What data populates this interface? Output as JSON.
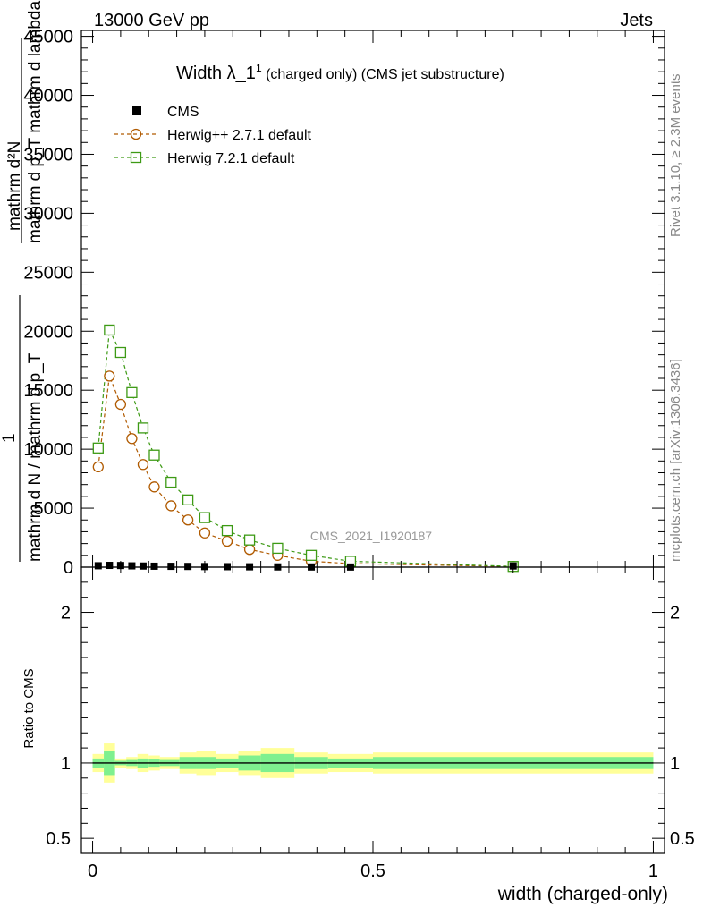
{
  "header": {
    "left": "13000 GeV pp",
    "right": "Jets"
  },
  "side_labels": {
    "rivet": "Rivet 3.1.10, ≥ 2.3M events",
    "mcplots": "mcplots.cern.ch [arXiv:1306.3436]"
  },
  "colors": {
    "cms": "#000000",
    "herwigpp": "#b05a00",
    "herwig7": "#3d9a15",
    "band_yellow": "#ffff99",
    "band_green": "#7ff08f"
  },
  "chart_data": [
    {
      "type": "scatter",
      "title_main": "Width λ_1",
      "title_sup": "1",
      "title_rest": " (charged only) (CMS jet substructure)",
      "watermark": "CMS_2021_I1920187",
      "ylabel": {
        "numerator_top": "mathrm d²N",
        "numerator_bottom": "mathrm d p_T mathrm d lambda",
        "prefix": "1",
        "denominator": "mathrm d N / mathrm d p_T"
      },
      "xlim": [
        -0.02,
        1.02
      ],
      "ylim": [
        0,
        45500
      ],
      "yticks": [
        {
          "value": 0,
          "label": "0"
        },
        {
          "value": 5000,
          "label": "5000"
        },
        {
          "value": 10000,
          "label": "10000"
        },
        {
          "value": 15000,
          "label": "15000"
        },
        {
          "value": 20000,
          "label": "20000"
        },
        {
          "value": 25000,
          "label": "25000"
        },
        {
          "value": 30000,
          "label": "30000"
        },
        {
          "value": 35000,
          "label": "35000"
        },
        {
          "value": 40000,
          "label": "40000"
        },
        {
          "value": 45000,
          "label": "45000"
        }
      ],
      "legend": [
        "CMS",
        "Herwig++ 2.7.1 default",
        "Herwig 7.2.1 default"
      ],
      "legend_position": "top-left",
      "series": [
        {
          "name": "CMS",
          "x": [
            0.01,
            0.03,
            0.05,
            0.07,
            0.09,
            0.11,
            0.14,
            0.17,
            0.2,
            0.24,
            0.28,
            0.33,
            0.39,
            0.46,
            0.75
          ],
          "y": [
            120,
            150,
            140,
            110,
            95,
            80,
            70,
            60,
            50,
            40,
            30,
            20,
            15,
            10,
            100
          ]
        },
        {
          "name": "Herwig++ 2.7.1 default",
          "x": [
            0.01,
            0.03,
            0.05,
            0.07,
            0.09,
            0.11,
            0.14,
            0.17,
            0.2,
            0.24,
            0.28,
            0.33,
            0.39,
            0.46,
            0.75
          ],
          "y": [
            8500,
            16200,
            13800,
            10900,
            8700,
            6800,
            5200,
            4000,
            2900,
            2200,
            1500,
            1000,
            500,
            300,
            60
          ]
        },
        {
          "name": "Herwig 7.2.1 default",
          "x": [
            0.01,
            0.03,
            0.05,
            0.07,
            0.09,
            0.11,
            0.14,
            0.17,
            0.2,
            0.24,
            0.28,
            0.33,
            0.39,
            0.46,
            0.75
          ],
          "y": [
            10100,
            20100,
            18200,
            14800,
            11800,
            9500,
            7200,
            5700,
            4200,
            3100,
            2300,
            1600,
            1000,
            500,
            60
          ]
        }
      ]
    },
    {
      "type": "area",
      "ylabel": "Ratio to CMS",
      "xlabel": "width (charged-only)",
      "xlim": [
        -0.02,
        1.02
      ],
      "ylim": [
        0.4,
        2.3
      ],
      "xticks": [
        {
          "value": 0,
          "label": "0"
        },
        {
          "value": 0.5,
          "label": "0.5"
        },
        {
          "value": 1,
          "label": "1"
        }
      ],
      "yticks": [
        {
          "value": 0.5,
          "label": "0.5"
        },
        {
          "value": 1,
          "label": "1"
        },
        {
          "value": 2,
          "label": "2"
        }
      ],
      "reference_line": 1,
      "bands": {
        "edges": [
          0,
          0.02,
          0.04,
          0.06,
          0.08,
          0.1,
          0.12,
          0.155,
          0.185,
          0.22,
          0.26,
          0.3,
          0.36,
          0.42,
          0.5,
          1.0
        ],
        "green_half": [
          0.03,
          0.08,
          0.015,
          0.02,
          0.03,
          0.025,
          0.02,
          0.04,
          0.04,
          0.03,
          0.05,
          0.06,
          0.04,
          0.03,
          0.04
        ],
        "yellow_half": [
          0.06,
          0.13,
          0.03,
          0.04,
          0.06,
          0.05,
          0.04,
          0.07,
          0.08,
          0.06,
          0.08,
          0.1,
          0.07,
          0.06,
          0.07
        ]
      }
    }
  ]
}
